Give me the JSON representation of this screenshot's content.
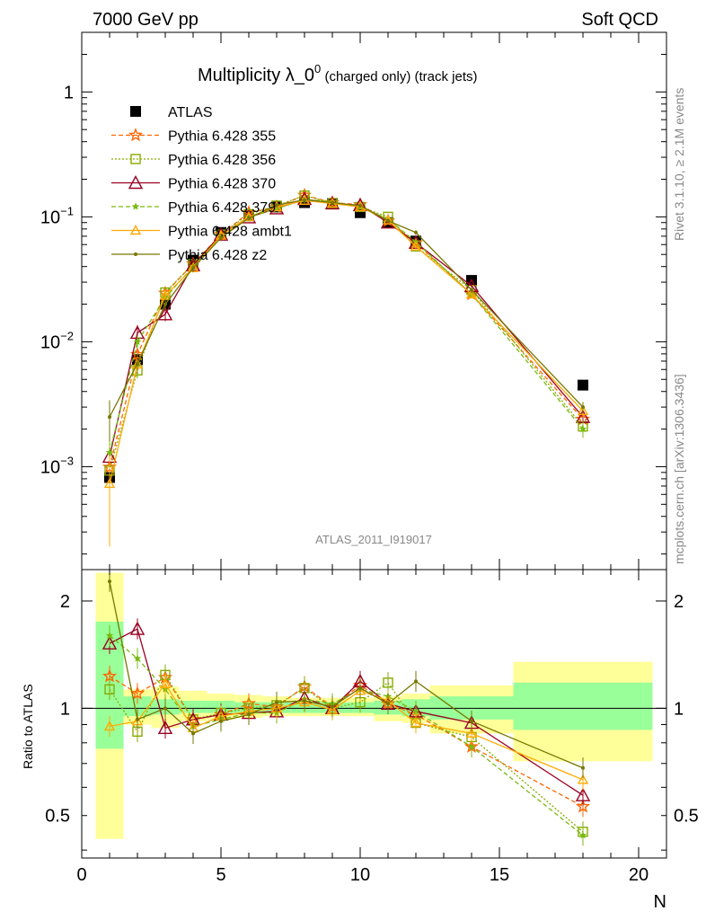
{
  "header": {
    "left": "7000 GeV pp",
    "right": "Soft QCD"
  },
  "side": {
    "rivet": "Rivet 3.1.10, ≥ 2.1M events",
    "mcplots": "mcplots.cern.ch [arXiv:1306.3436]"
  },
  "title_main": "Multiplicity λ_0",
  "title_sup": "0",
  "title_sub": " (charged only) (track jets)",
  "watermark": "ATLAS_2011_I919017",
  "ratio_ylabel": "Ratio to ATLAS",
  "xlabel": "N",
  "colors": {
    "green_band": "#99ff99",
    "yellow_band": "#ffff99"
  },
  "chart_data": [
    {
      "type": "line",
      "panel": "main",
      "yscale": "log",
      "ylim": [
        0.00015,
        3
      ],
      "xlim": [
        0,
        21
      ],
      "yticks": [
        {
          "v": 0.001,
          "base": "10",
          "exp": "−3"
        },
        {
          "v": 0.01,
          "base": "10",
          "exp": "−2"
        },
        {
          "v": 0.1,
          "base": "10",
          "exp": "−1"
        },
        {
          "v": 1,
          "base": "1",
          "exp": ""
        }
      ],
      "x": [
        1,
        2,
        3,
        4,
        5,
        6,
        7,
        8,
        9,
        10,
        11,
        12,
        14,
        18
      ],
      "series": [
        {
          "name": "ATLAS",
          "color": "#000000",
          "style": "data",
          "marker": "square",
          "values": [
            0.00082,
            0.0072,
            0.02,
            0.045,
            0.075,
            0.102,
            0.12,
            0.13,
            0.128,
            0.108,
            0.09,
            0.064,
            0.031,
            0.0045
          ],
          "err": [
            0.0001,
            0.0006,
            0.0015,
            0.003,
            0.004,
            0.005,
            0.005,
            0.005,
            0.005,
            0.004,
            0.004,
            0.003,
            0.002,
            0.0004
          ]
        },
        {
          "name": "Pythia 6.428 355",
          "color": "#ff6600",
          "style": "dashed",
          "marker": "star",
          "values": [
            0.00099,
            0.0079,
            0.0245,
            0.042,
            0.072,
            0.108,
            0.12,
            0.149,
            0.13,
            0.125,
            0.093,
            0.062,
            0.024,
            0.0024
          ],
          "err": [
            0.0004,
            0.0008,
            0.002,
            0.003,
            0.004,
            0.005,
            0.005,
            0.006,
            0.005,
            0.005,
            0.004,
            0.003,
            0.0015,
            0.0003
          ]
        },
        {
          "name": "Pythia 6.428 356",
          "color": "#88aa00",
          "style": "dotted",
          "marker": "square-open",
          "values": [
            0.00093,
            0.0059,
            0.0248,
            0.042,
            0.072,
            0.105,
            0.123,
            0.148,
            0.129,
            0.12,
            0.1,
            0.058,
            0.026,
            0.0021
          ],
          "err": [
            0.0004,
            0.0008,
            0.002,
            0.003,
            0.004,
            0.005,
            0.005,
            0.006,
            0.005,
            0.005,
            0.004,
            0.003,
            0.0015,
            0.0003
          ]
        },
        {
          "name": "Pythia 6.428 370",
          "color": "#990022",
          "style": "solid",
          "marker": "triangle-open",
          "values": [
            0.0012,
            0.0118,
            0.0166,
            0.041,
            0.072,
            0.099,
            0.117,
            0.139,
            0.128,
            0.124,
            0.09,
            0.062,
            0.028,
            0.0025
          ],
          "err": [
            0.0004,
            0.0018,
            0.002,
            0.003,
            0.004,
            0.005,
            0.005,
            0.006,
            0.005,
            0.005,
            0.004,
            0.003,
            0.0015,
            0.0003
          ]
        },
        {
          "name": "Pythia 6.428 379",
          "color": "#77bb11",
          "style": "dashed",
          "marker": "star-small",
          "values": [
            0.0013,
            0.01,
            0.0226,
            0.04,
            0.07,
            0.099,
            0.116,
            0.138,
            0.132,
            0.12,
            0.096,
            0.063,
            0.024,
            0.002
          ],
          "err": [
            0.0004,
            0.0012,
            0.002,
            0.003,
            0.004,
            0.005,
            0.005,
            0.006,
            0.005,
            0.005,
            0.004,
            0.003,
            0.0015,
            0.0003
          ]
        },
        {
          "name": "Pythia 6.428 ambt1",
          "color": "#ffaa00",
          "style": "solid",
          "marker": "triangle-open-small",
          "values": [
            0.00073,
            0.0066,
            0.0234,
            0.039,
            0.071,
            0.1,
            0.12,
            0.135,
            0.128,
            0.12,
            0.094,
            0.058,
            0.024,
            0.0028
          ],
          "err": [
            0.0005,
            0.0008,
            0.002,
            0.003,
            0.004,
            0.005,
            0.005,
            0.006,
            0.005,
            0.005,
            0.004,
            0.003,
            0.0015,
            0.0003
          ]
        },
        {
          "name": "Pythia 6.428 z2",
          "color": "#777700",
          "style": "solid",
          "marker": "dot",
          "values": [
            0.0025,
            0.0067,
            0.02,
            0.039,
            0.068,
            0.098,
            0.124,
            0.137,
            0.13,
            0.123,
            0.093,
            0.075,
            0.026,
            0.003
          ],
          "err": [
            0.0009,
            0.0012,
            0.002,
            0.003,
            0.004,
            0.005,
            0.005,
            0.006,
            0.005,
            0.005,
            0.004,
            0.003,
            0.0015,
            0.0003
          ]
        }
      ]
    },
    {
      "type": "line",
      "panel": "ratio",
      "ylabel": "Ratio to ATLAS",
      "xlabel": "N",
      "yscale": "log",
      "ylim": [
        0.38,
        2.45
      ],
      "xlim": [
        0,
        21
      ],
      "xticks": [
        0,
        5,
        10,
        15,
        20
      ],
      "yticks": [
        {
          "v": 0.5,
          "label": "0.5"
        },
        {
          "v": 1,
          "label": "1"
        },
        {
          "v": 2,
          "label": "2"
        }
      ],
      "bands": [
        {
          "x0": 0.5,
          "x1": 1.5,
          "g": [
            0.77,
            1.75
          ],
          "y": [
            0.43,
            2.4
          ]
        },
        {
          "x0": 1.5,
          "x1": 2.5,
          "g": [
            0.95,
            1.08
          ],
          "y": [
            0.9,
            1.13
          ]
        },
        {
          "x0": 2.5,
          "x1": 3.5,
          "g": [
            0.96,
            1.06
          ],
          "y": [
            0.88,
            1.15
          ]
        },
        {
          "x0": 3.5,
          "x1": 4.5,
          "g": [
            0.97,
            1.05
          ],
          "y": [
            0.92,
            1.12
          ]
        },
        {
          "x0": 4.5,
          "x1": 5.5,
          "g": [
            0.97,
            1.05
          ],
          "y": [
            0.93,
            1.1
          ]
        },
        {
          "x0": 5.5,
          "x1": 6.5,
          "g": [
            0.97,
            1.04
          ],
          "y": [
            0.94,
            1.09
          ]
        },
        {
          "x0": 6.5,
          "x1": 7.5,
          "g": [
            0.97,
            1.04
          ],
          "y": [
            0.95,
            1.08
          ]
        },
        {
          "x0": 7.5,
          "x1": 8.5,
          "g": [
            0.97,
            1.04
          ],
          "y": [
            0.95,
            1.07
          ]
        },
        {
          "x0": 8.5,
          "x1": 9.5,
          "g": [
            0.97,
            1.04
          ],
          "y": [
            0.95,
            1.07
          ]
        },
        {
          "x0": 9.5,
          "x1": 10.5,
          "g": [
            0.97,
            1.04
          ],
          "y": [
            0.95,
            1.07
          ]
        },
        {
          "x0": 10.5,
          "x1": 11.5,
          "g": [
            0.96,
            1.05
          ],
          "y": [
            0.92,
            1.08
          ]
        },
        {
          "x0": 11.5,
          "x1": 12.5,
          "g": [
            0.95,
            1.06
          ],
          "y": [
            0.91,
            1.1
          ]
        },
        {
          "x0": 12.5,
          "x1": 15.5,
          "g": [
            0.93,
            1.08
          ],
          "y": [
            0.85,
            1.16
          ]
        },
        {
          "x0": 15.5,
          "x1": 20.5,
          "g": [
            0.87,
            1.18
          ],
          "y": [
            0.71,
            1.35
          ]
        }
      ],
      "x": [
        1,
        2,
        3,
        4,
        5,
        6,
        7,
        8,
        9,
        10,
        11,
        12,
        14,
        18
      ],
      "series": [
        {
          "name": "Pythia 6.428 355",
          "color": "#ff6600",
          "style": "dashed",
          "marker": "star",
          "values": [
            1.23,
            1.1,
            1.22,
            0.93,
            0.96,
            1.03,
            1.01,
            1.15,
            1.01,
            1.16,
            1.03,
            0.96,
            0.78,
            0.53
          ]
        },
        {
          "name": "Pythia 6.428 356",
          "color": "#88aa00",
          "style": "dotted",
          "marker": "square-open",
          "values": [
            1.13,
            0.86,
            1.24,
            0.93,
            0.97,
            1.0,
            1.02,
            1.14,
            1.0,
            1.04,
            1.18,
            0.91,
            0.83,
            0.45
          ]
        },
        {
          "name": "Pythia 6.428 370",
          "color": "#990022",
          "style": "solid",
          "marker": "triangle-open",
          "values": [
            1.52,
            1.67,
            0.88,
            0.93,
            0.96,
            0.97,
            0.98,
            1.07,
            1.0,
            1.19,
            1.03,
            0.98,
            0.91,
            0.57
          ]
        },
        {
          "name": "Pythia 6.428 379",
          "color": "#77bb11",
          "style": "dashed",
          "marker": "star-small",
          "values": [
            1.6,
            1.38,
            1.13,
            0.89,
            0.93,
            0.97,
            0.97,
            1.06,
            1.03,
            1.13,
            1.08,
            0.98,
            0.78,
            0.44
          ]
        },
        {
          "name": "Pythia 6.428 ambt1",
          "color": "#ffaa00",
          "style": "solid",
          "marker": "triangle-open-small",
          "values": [
            0.89,
            0.92,
            1.17,
            0.88,
            0.95,
            0.98,
            1.0,
            1.04,
            0.99,
            1.12,
            1.05,
            0.91,
            0.85,
            0.63
          ]
        },
        {
          "name": "Pythia 6.428 z2",
          "color": "#777700",
          "style": "solid",
          "marker": "dot",
          "values": [
            2.27,
            0.93,
            1.0,
            0.85,
            0.92,
            0.96,
            1.04,
            1.05,
            1.01,
            1.14,
            1.03,
            1.19,
            0.92,
            0.68
          ]
        }
      ]
    }
  ]
}
